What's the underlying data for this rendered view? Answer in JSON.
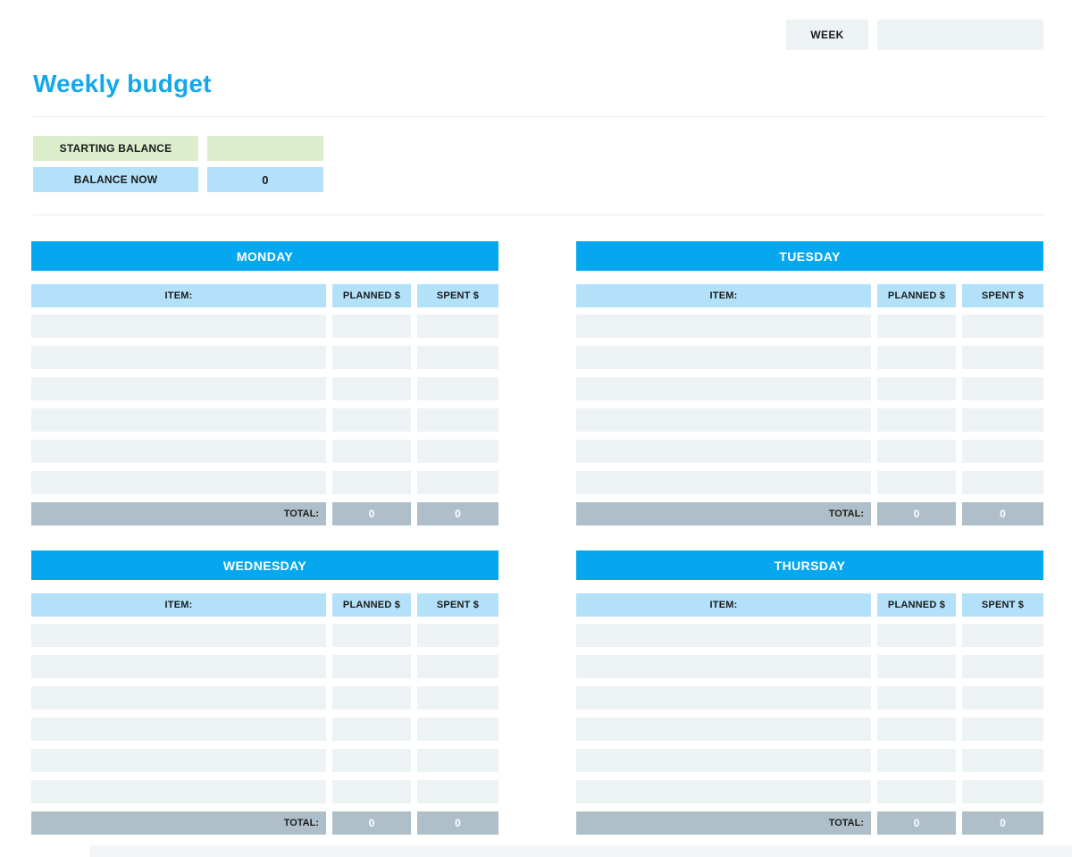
{
  "week_bar": {
    "label": "WEEK",
    "value": ""
  },
  "header": {
    "title": "Weekly budget"
  },
  "balance": {
    "starting_label": "STARTING BALANCE",
    "starting_value": "",
    "now_label": "BALANCE NOW",
    "now_value": "0"
  },
  "tables": {
    "columns": {
      "item": "ITEM:",
      "planned": "PLANNED $",
      "spent": "SPENT $"
    },
    "total_label": "TOTAL:",
    "rows_per_day": 6,
    "days": [
      {
        "name": "MONDAY",
        "total_planned": "0",
        "total_spent": "0"
      },
      {
        "name": "TUESDAY",
        "total_planned": "0",
        "total_spent": "0"
      },
      {
        "name": "WEDNESDAY",
        "total_planned": "0",
        "total_spent": "0"
      },
      {
        "name": "THURSDAY",
        "total_planned": "0",
        "total_spent": "0"
      }
    ]
  },
  "colors": {
    "accent_blue": "#05a8ef",
    "title_blue": "#14a7ec",
    "light_blue": "#b3e1fa",
    "row_gray": "#edf2f4",
    "total_gray": "#aebfc9",
    "green": "#dcedcc"
  }
}
